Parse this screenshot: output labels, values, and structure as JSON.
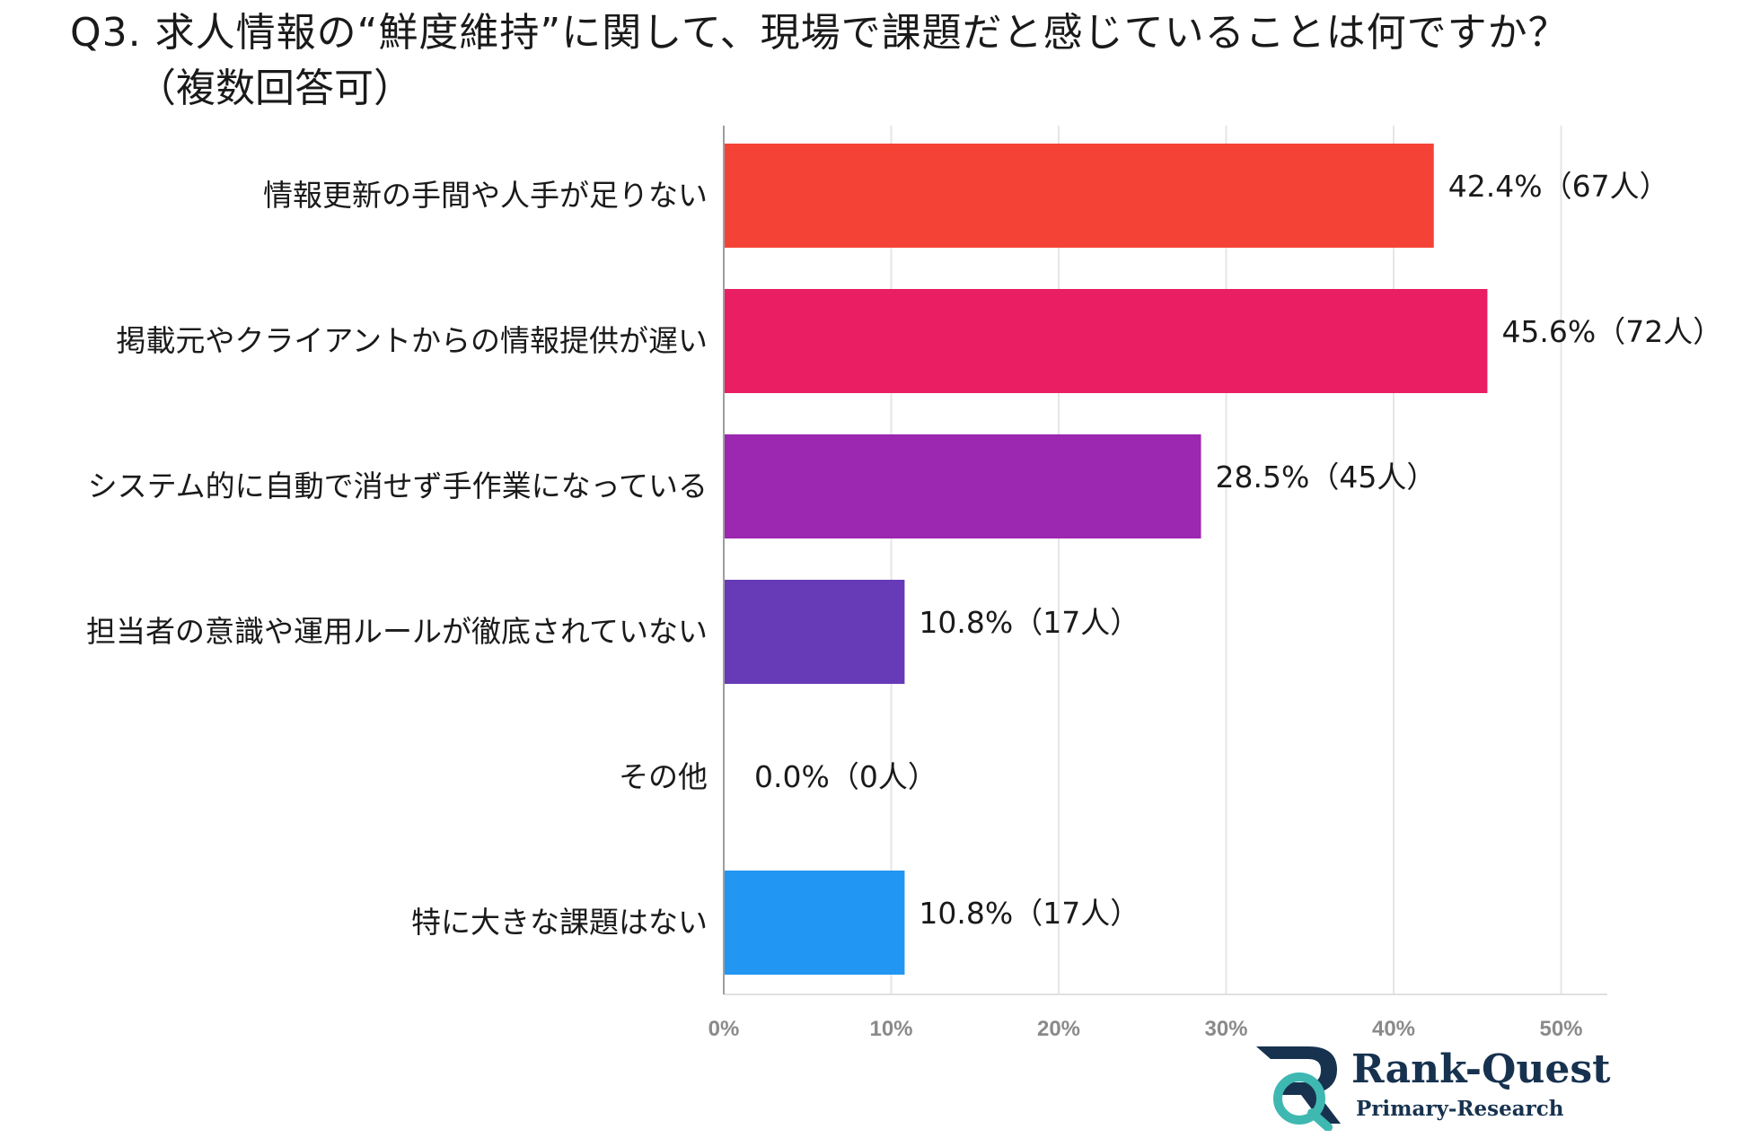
{
  "title": "Q3. 求人情報の“鮮度維持”に関して、現場で課題だと感じていることは何ですか？",
  "subtitle": "（複数回答可）",
  "chart_data": {
    "type": "bar",
    "orientation": "horizontal",
    "categories": [
      "情報更新の手間や人手が足りない",
      "掲載元やクライアントからの情報提供が遅い",
      "システム的に自動で消せず手作業になっている",
      "担当者の意識や運用ルールが徹底されていない",
      "その他",
      "特に大きな課題はない"
    ],
    "values": [
      42.4,
      45.6,
      28.5,
      10.8,
      0.0,
      10.8
    ],
    "data_labels": [
      "42.4%（67人）",
      "45.6%（72人）",
      "28.5%（45人）",
      "10.8%（17人）",
      "0.0%（0人）",
      "10.8%（17人）"
    ],
    "colors": [
      "#f44336",
      "#e91e63",
      "#9c27b0",
      "#673ab7",
      "#9e9e9e",
      "#2196f3"
    ],
    "xlim": [
      0,
      50
    ],
    "xticks": [
      0,
      10,
      20,
      30,
      40,
      50
    ],
    "xtick_labels": [
      "0%",
      "10%",
      "20%",
      "30%",
      "40%",
      "50%"
    ],
    "grid": true,
    "legend": "none"
  },
  "logo": {
    "name": "Rank-Quest",
    "subtitle": "Primary-Research",
    "colors": {
      "navy": "#17324f",
      "teal": "#3fb8b2"
    }
  }
}
